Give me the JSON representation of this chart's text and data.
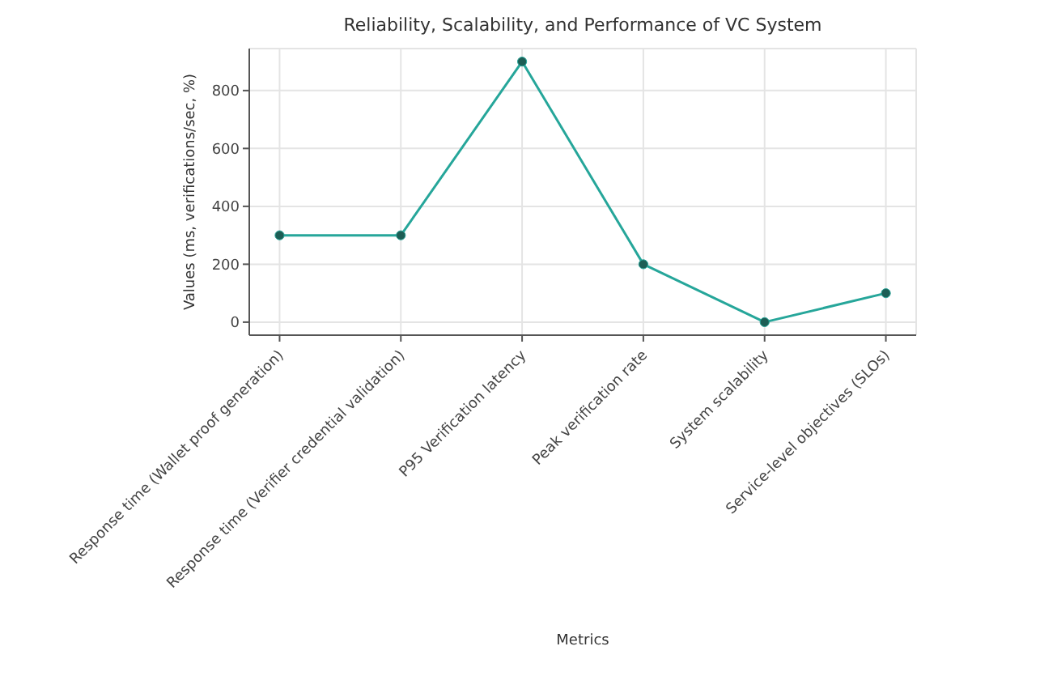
{
  "chart_data": {
    "type": "line",
    "title": "Reliability, Scalability, and Performance of VC System",
    "xlabel": "Metrics",
    "ylabel": "Values (ms, verifications/sec, %)",
    "categories": [
      "Response time (Wallet proof generation)",
      "Response time (Verifier credential validation)",
      "P95 Verification latency",
      "Peak verification rate",
      "System scalability",
      "Service-level objectives (SLOs)"
    ],
    "series": [
      {
        "color": "#26a69a",
        "values": [
          300,
          300,
          900,
          200,
          0,
          100
        ]
      }
    ],
    "ylim": [
      -45,
      945
    ],
    "yticks": [
      0,
      200,
      400,
      600,
      800
    ],
    "grid": true,
    "marker": "circle",
    "line_style": "solid"
  }
}
